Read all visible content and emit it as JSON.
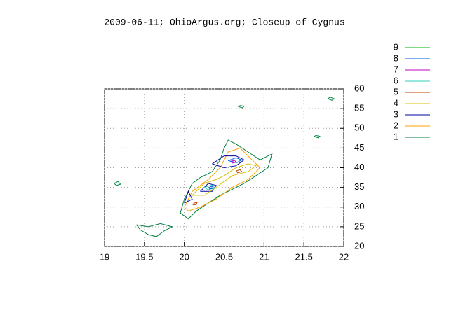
{
  "chart_data": {
    "type": "contour",
    "title": "2009-06-11; OhioArgus.org; Closeup of Cygnus",
    "xlim": [
      19,
      22
    ],
    "xticks": [
      19,
      19.5,
      20,
      20.5,
      21,
      21.5,
      22
    ],
    "ylim": [
      20,
      60
    ],
    "yticks": [
      20,
      25,
      30,
      35,
      40,
      45,
      50,
      55,
      60
    ],
    "grid": true,
    "series": [
      {
        "name": "1",
        "color": "#008040",
        "contours": [
          {
            "x": [
              19.95,
              20.0,
              20.1,
              20.2,
              20.35,
              20.45,
              20.5,
              20.55,
              20.65,
              20.8,
              20.95,
              21.1,
              21.05,
              20.9,
              20.75,
              20.6,
              20.45,
              20.3,
              20.15,
              20.05,
              19.95
            ],
            "y": [
              28.5,
              32,
              36,
              37.5,
              39,
              42,
              45,
              47,
              46,
              44,
              42,
              43.5,
              40,
              38,
              36,
              34.5,
              33,
              31,
              29,
              27,
              28.5
            ]
          },
          {
            "x": [
              19.4,
              19.55,
              19.7,
              19.85,
              19.75,
              19.65,
              19.55,
              19.45,
              19.4
            ],
            "y": [
              25.5,
              25,
              25.8,
              25,
              24,
              22.5,
              23,
              24.2,
              25.5
            ]
          },
          {
            "x": [
              19.12,
              19.17,
              19.2,
              19.15,
              19.12
            ],
            "y": [
              36,
              36.5,
              35.8,
              35.5,
              36
            ]
          },
          {
            "x": [
              20.7,
              20.75,
              20.73,
              20.68,
              20.7
            ],
            "y": [
              55.8,
              55.6,
              55.2,
              55.5,
              55.8
            ]
          },
          {
            "x": [
              21.83,
              21.88,
              21.85,
              21.8,
              21.83
            ],
            "y": [
              57.9,
              57.5,
              57.1,
              57.5,
              57.9
            ]
          },
          {
            "x": [
              21.65,
              21.7,
              21.68,
              21.63,
              21.65
            ],
            "y": [
              48.2,
              48,
              47.6,
              47.9,
              48.2
            ]
          }
        ]
      },
      {
        "name": "2",
        "color": "#ffa000",
        "contours": [
          {
            "x": [
              20.0,
              20.1,
              20.3,
              20.45,
              20.55,
              20.7,
              20.85,
              20.95,
              20.8,
              20.6,
              20.4,
              20.2,
              20.05,
              20.0
            ],
            "y": [
              30,
              34,
              37,
              40,
              44,
              45,
              42,
              40,
              37,
              35,
              32,
              30,
              29,
              30
            ]
          }
        ]
      },
      {
        "name": "3",
        "color": "#0000a0",
        "contours": [
          {
            "x": [
              20.35,
              20.5,
              20.65,
              20.75,
              20.65,
              20.5,
              20.35
            ],
            "y": [
              41,
              43,
              43,
              42,
              40.5,
              40,
              41
            ]
          },
          {
            "x": [
              20.2,
              20.3,
              20.4,
              20.35,
              20.2
            ],
            "y": [
              34,
              36,
              35.5,
              34,
              34
            ]
          },
          {
            "x": [
              20.0,
              20.05,
              20.1,
              20.0
            ],
            "y": [
              31,
              34,
              32,
              31
            ]
          }
        ]
      },
      {
        "name": "4",
        "color": "#d8c000",
        "contours": [
          {
            "x": [
              20.1,
              20.25,
              20.4,
              20.5,
              20.65,
              20.8,
              20.9,
              20.8,
              20.6,
              20.4,
              20.25,
              20.1
            ],
            "y": [
              33,
              36,
              37,
              38,
              40,
              41,
              40.5,
              39,
              38,
              35,
              33,
              33
            ]
          }
        ]
      },
      {
        "name": "5",
        "color": "#c04000",
        "contours": [
          {
            "x": [
              20.65,
              20.7,
              20.72,
              20.67,
              20.65
            ],
            "y": [
              39.2,
              39.5,
              39,
              38.7,
              39.2
            ]
          },
          {
            "x": [
              20.12,
              20.16,
              20.15,
              20.11,
              20.12
            ],
            "y": [
              31,
              31.2,
              30.6,
              30.6,
              31
            ]
          }
        ]
      },
      {
        "name": "6",
        "color": "#30d0c0",
        "contours": [
          {
            "x": [
              20.25,
              20.35,
              20.38,
              20.3,
              20.25
            ],
            "y": [
              35,
              35.6,
              34.8,
              34.4,
              35
            ]
          }
        ]
      },
      {
        "name": "7",
        "color": "#c000c0",
        "contours": [
          {
            "x": [
              20.58,
              20.63,
              20.65,
              20.6,
              20.58
            ],
            "y": [
              41.6,
              41.9,
              41.4,
              41.2,
              41.6
            ]
          }
        ]
      },
      {
        "name": "8",
        "color": "#0060e0",
        "contours": [
          {
            "x": [
              20.55,
              20.65,
              20.72,
              20.66,
              20.55
            ],
            "y": [
              41.8,
              42.5,
              42,
              41.3,
              41.8
            ]
          },
          {
            "x": [
              20.31,
              20.35,
              20.36,
              20.32,
              20.31
            ],
            "y": [
              35,
              35.3,
              34.8,
              34.6,
              35
            ]
          }
        ]
      },
      {
        "name": "9",
        "color": "#00b000",
        "contours": []
      }
    ]
  }
}
